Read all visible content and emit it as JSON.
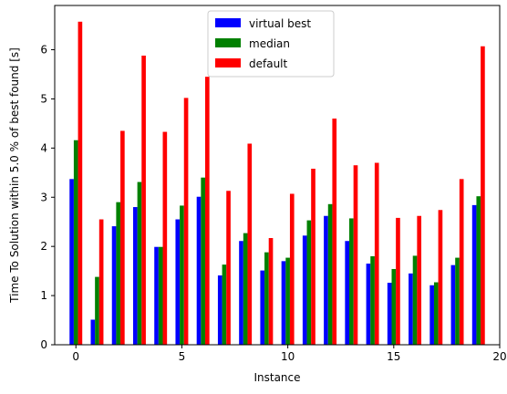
{
  "chart_data": {
    "type": "bar",
    "xlabel": "Instance",
    "ylabel": "Time To Solution within 5.0 % of best found [s]",
    "x": [
      0,
      1,
      2,
      3,
      4,
      5,
      6,
      7,
      8,
      9,
      10,
      11,
      12,
      13,
      14,
      15,
      16,
      17,
      18,
      19
    ],
    "xlim": [
      -1,
      20
    ],
    "ylim": [
      0,
      6.9
    ],
    "xticks": [
      0,
      5,
      10,
      15,
      20
    ],
    "yticks": [
      0,
      1,
      2,
      3,
      4,
      5,
      6
    ],
    "legend_position": "top-center",
    "grid": false,
    "series": [
      {
        "name": "virtual best",
        "color": "#0000ff",
        "values": [
          3.37,
          0.51,
          2.41,
          2.8,
          1.99,
          2.55,
          3.01,
          1.41,
          2.11,
          1.51,
          1.7,
          2.22,
          2.62,
          2.11,
          1.65,
          1.26,
          1.45,
          1.21,
          1.62,
          2.84
        ]
      },
      {
        "name": "median",
        "color": "#008000",
        "values": [
          4.16,
          1.38,
          2.9,
          3.31,
          1.99,
          2.83,
          3.4,
          1.63,
          2.27,
          1.88,
          1.77,
          2.53,
          2.86,
          2.57,
          1.8,
          1.54,
          1.81,
          1.27,
          1.77,
          3.02
        ]
      },
      {
        "name": "default",
        "color": "#ff0000",
        "values": [
          6.57,
          2.55,
          4.35,
          5.88,
          4.33,
          5.02,
          5.45,
          3.13,
          4.09,
          2.17,
          3.07,
          3.58,
          4.6,
          3.65,
          3.7,
          2.58,
          2.62,
          2.74,
          3.37,
          6.07
        ]
      }
    ]
  }
}
